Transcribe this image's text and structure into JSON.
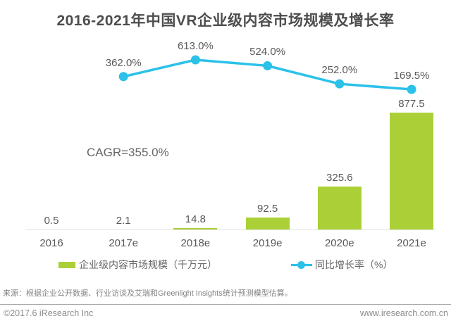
{
  "chart_data": {
    "type": "bar+line",
    "title": "2016-2021年中国VR企业级内容市场规模及增长率",
    "categories": [
      "2016",
      "2017e",
      "2018e",
      "2019e",
      "2020e",
      "2021e"
    ],
    "series": [
      {
        "name": "企业级内容市场规模（千万元）",
        "type": "bar",
        "values": [
          0.5,
          2.1,
          14.8,
          92.5,
          325.6,
          877.5
        ],
        "labels": [
          "0.5",
          "2.1",
          "14.8",
          "92.5",
          "325.6",
          "877.5"
        ],
        "color": "#abd037"
      },
      {
        "name": "同比增长率（%）",
        "type": "line",
        "values": [
          null,
          362.0,
          613.0,
          524.0,
          252.0,
          169.5
        ],
        "labels": [
          null,
          "362.0%",
          "613.0%",
          "524.0%",
          "252.0%",
          "169.5%"
        ],
        "color": "#2bc1e9"
      }
    ],
    "annotation": "CAGR=355.0%",
    "legend_position": "bottom",
    "grid": false,
    "bar_axis_range": [
      0,
      900
    ],
    "line_axis_range": [
      0,
      700
    ]
  },
  "footer": {
    "source_note": "来源：根据企业公开数据、行业访谈及艾瑞和Greenlight Insights统计预测模型估算。",
    "copyright": "©2017.6 iResearch Inc",
    "website": "www.iresearch.com.cn"
  }
}
